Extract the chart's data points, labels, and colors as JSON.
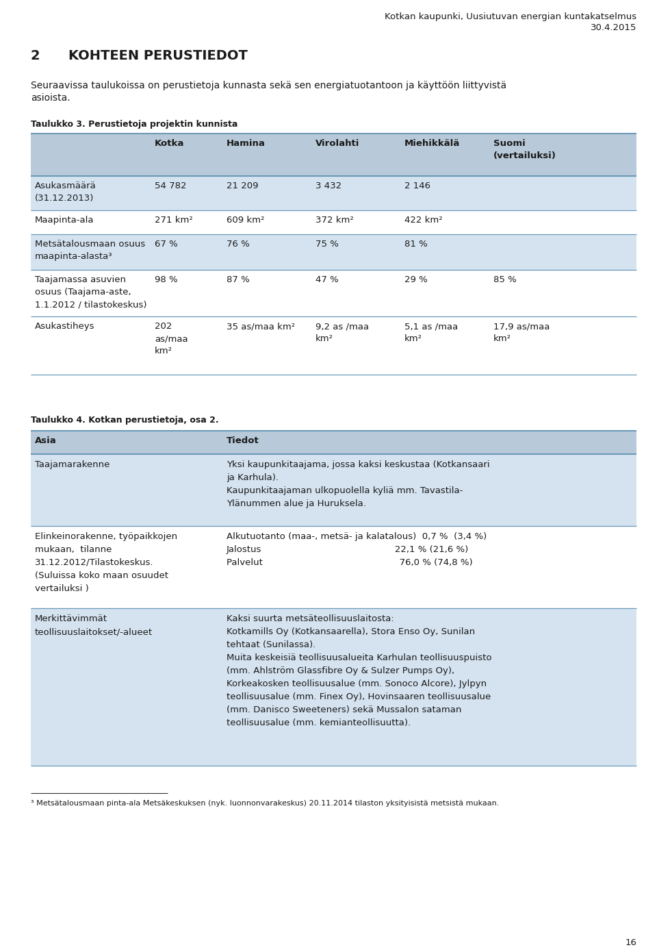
{
  "header_right_line1": "Kotkan kaupunki, Uusiutuvan energian kuntakatselmus",
  "header_right_line2": "30.4.2015",
  "section_number": "2",
  "section_title": "KOHTEEN PERUSTIEDOT",
  "intro_line1": "Seuraavissa taulukoissa on perustietoja kunnasta sekä sen energiatuotantoon ja käyttöön liittyvistä",
  "intro_line2": "asioista.",
  "table3_title": "Taulukko 3. Perustietoja projektin kunnista",
  "table3_col_labels": [
    "",
    "Kotka",
    "Hamina",
    "Virolahti",
    "Miehikkälä",
    "Suomi\n(vertailuksi)"
  ],
  "table3_rows": [
    [
      "Asukasmäärä\n(31.12.2013)",
      "54 782",
      "21 209",
      "3 432",
      "2 146",
      ""
    ],
    [
      "Maapinta-ala",
      "271 km²",
      "609 km²",
      "372 km²",
      "422 km²",
      ""
    ],
    [
      "Metsätalousmaan osuus\nmaapinta-alasta³",
      "67 %",
      "76 %",
      "75 %",
      "81 %",
      ""
    ],
    [
      "Taajamassa asuvien\nosuus (Taajama-aste,\n1.1.2012 / tilastokeskus)",
      "98 %",
      "87 %",
      "47 %",
      "29 %",
      "85 %"
    ],
    [
      "Asukastiheys",
      "202\nas/maa\nkm²",
      "35 as/maa km²",
      "9,2 as /maa\nkm²",
      "5,1 as /maa\nkm²",
      "17,9 as/maa\nkm²"
    ]
  ],
  "table3_row_shade": [
    true,
    false,
    true,
    false,
    false
  ],
  "table4_title": "Taulukko 4. Kotkan perustietoja, osa 2.",
  "table4_col_labels": [
    "Asia",
    "Tiedot"
  ],
  "table4_rows": [
    {
      "col1": "Taajamarakenne",
      "col2": "Yksi kaupunkitaajama, jossa kaksi keskustaa (Kotkansaari\nja Karhula).\nKaupunkitaajaman ulkopuolella kyliä mm. Tavastila-\nYlänummen alue ja Huruksela.",
      "shade": true
    },
    {
      "col1": "Elinkeinorakenne, työpaikkojen\nmukaan,  tilanne\n31.12.2012/Tilastokeskus.\n(Suluissa koko maan osuudet\nvertailuksi )",
      "col2": "Alkutuotanto (maa-, metsä- ja kalatalous)  0,7 %  (3,4 %)\nJalostus                                              22,1 % (21,6 %)\nPalvelut                                               76,0 % (74,8 %)",
      "shade": false
    },
    {
      "col1": "Merkittävimmät\nteollisuuslaitokset/-alueet",
      "col2": "Kaksi suurta metsäteollisuuslaitosta:\nKotkamills Oy (Kotkansaarella), Stora Enso Oy, Sunilan\ntehtaat (Sunilassa).\nMuita keskeisiä teollisuusalueita Karhulan teollisuuspuisto\n(mm. Ahlström Glassfibre Oy & Sulzer Pumps Oy),\nKorkeakosken teollisuusalue (mm. Sonoco Alcore), Jylpyn\nteollisuusalue (mm. Finex Oy), Hovinsaaren teollisuusalue\n(mm. Danisco Sweeteners) sekä Mussalon sataman\nteollisuusalue (mm. kemianteollisuutta).",
      "shade": true
    }
  ],
  "footnote": "³ Metsätalousmaan pinta-ala Metsäkeskuksen (nyk. luonnonvarakeskus) 20.11.2014 tilaston yksityisistä metsistä mukaan.",
  "page_number": "16",
  "bg_color": "#ffffff",
  "table_header_bg": "#b8c9d9",
  "table_shaded_bg": "#d5e3f0",
  "table_line_color": "#6b9ab8",
  "text_color": "#1a1a1a"
}
